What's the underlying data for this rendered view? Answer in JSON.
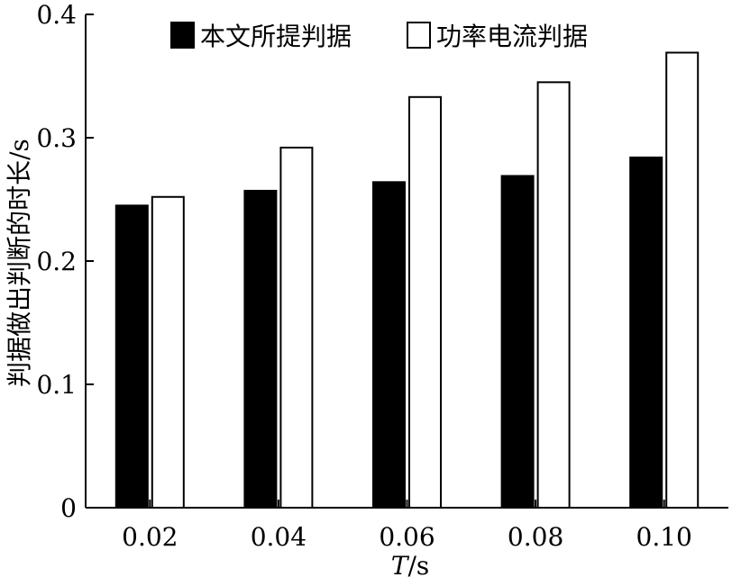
{
  "chart_data": {
    "type": "bar",
    "title": "",
    "xlabel": "T/s",
    "xlabel_italic_part": "T",
    "xlabel_rest": "/s",
    "ylabel": "判据做出判断的时长/s",
    "categories": [
      "0.02",
      "0.04",
      "0.06",
      "0.08",
      "0.10"
    ],
    "series": [
      {
        "name": "本文所提判据",
        "values": [
          0.245,
          0.257,
          0.264,
          0.269,
          0.284
        ],
        "color": "#000000",
        "fill": "solid"
      },
      {
        "name": "功率电流判据",
        "values": [
          0.252,
          0.292,
          0.333,
          0.345,
          0.369
        ],
        "color": "#ffffff",
        "fill": "hollow"
      }
    ],
    "ylim": [
      0,
      0.4
    ],
    "yticks": [
      0,
      0.1,
      0.2,
      0.3,
      0.4
    ],
    "ytick_labels": [
      "0",
      "0.1",
      "0.2",
      "0.3",
      "0.4"
    ],
    "grid": false,
    "legend_position": "top"
  }
}
